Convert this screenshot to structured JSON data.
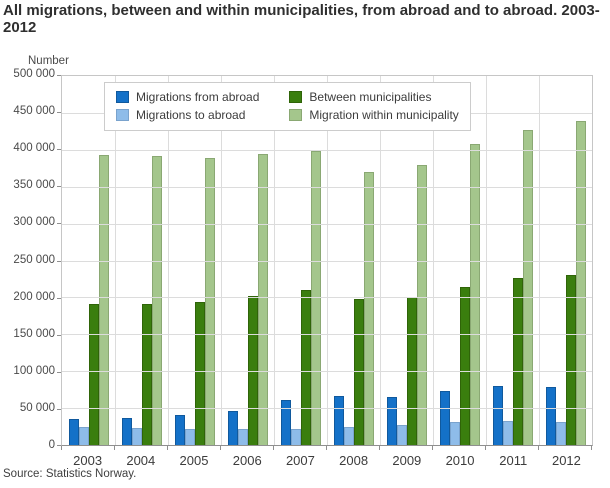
{
  "source": "Source: Statistics Norway.",
  "chart_data": {
    "type": "bar",
    "title": "All migrations, between and within municipalities, from abroad and to abroad. 2003-2012",
    "ylabel": "Number",
    "xlabel": "",
    "ylim": [
      0,
      500000
    ],
    "ytick_step": 50000,
    "grid": true,
    "legend_position": "top-left-inside",
    "categories": [
      "2003",
      "2004",
      "2005",
      "2006",
      "2007",
      "2008",
      "2009",
      "2010",
      "2011",
      "2012"
    ],
    "series": [
      {
        "name": "Migrations from abroad",
        "color": "#1471c8",
        "border_color": "#10599d",
        "values": [
          35000,
          36000,
          40000,
          45500,
          61500,
          67000,
          65000,
          73500,
          79500,
          78500
        ]
      },
      {
        "name": "Migrations to abroad",
        "color": "#8ebce9",
        "border_color": "#7aa3cd",
        "values": [
          25000,
          23500,
          21500,
          22000,
          22000,
          24000,
          26500,
          31500,
          32500,
          31500
        ]
      },
      {
        "name": "Between municipalities",
        "color": "#3a7e0e",
        "border_color": "#2f6408",
        "values": [
          190500,
          191000,
          193500,
          201500,
          210500,
          198500,
          200000,
          214500,
          226000,
          230000
        ]
      },
      {
        "name": "Migration within municipality",
        "color": "#a4c68c",
        "border_color": "#8aa873",
        "values": [
          393000,
          392000,
          389500,
          394500,
          398500,
          369500,
          379500,
          408500,
          427500,
          438500
        ]
      }
    ],
    "axis_colors": {
      "gridline": "#dcdcdc",
      "axis_line": "#8f8f8f",
      "plot_border": "#c6c6c6"
    }
  }
}
